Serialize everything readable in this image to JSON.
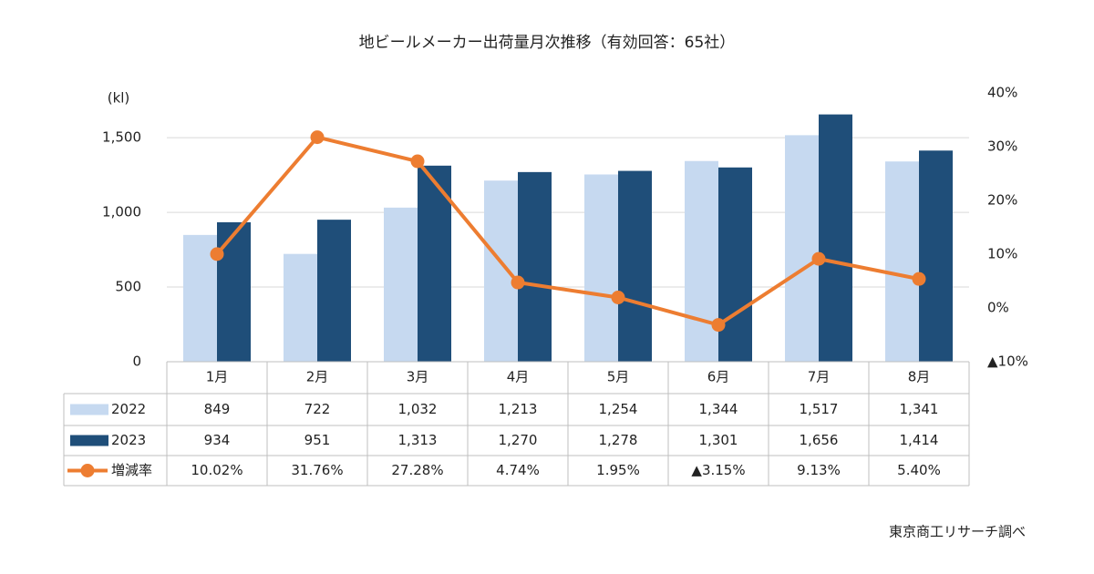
{
  "chart_data": {
    "type": "bar",
    "title": "地ビールメーカー出荷量月次推移（有効回答：65社）",
    "y_label": "(kl)",
    "source": "東京商工リサーチ調べ",
    "categories": [
      "1月",
      "2月",
      "3月",
      "4月",
      "5月",
      "6月",
      "7月",
      "8月"
    ],
    "ylim": [
      0,
      1800
    ],
    "yticks": [
      0,
      500,
      {
        "value": 1000,
        "label": "1,000"
      },
      {
        "value": 1500,
        "label": "1,500"
      }
    ],
    "y2lim": [
      -10,
      40
    ],
    "y2ticks": [
      {
        "value": -10,
        "label": "▲10%"
      },
      {
        "value": 0,
        "label": "0%"
      },
      {
        "value": 10,
        "label": "10%"
      },
      {
        "value": 20,
        "label": "20%"
      },
      {
        "value": 30,
        "label": "30%"
      },
      {
        "value": 40,
        "label": "40%"
      }
    ],
    "grid": true,
    "series": [
      {
        "name": "2022",
        "color": "#c6d9f0",
        "values": [
          849,
          722,
          1032,
          1213,
          1254,
          1344,
          1517,
          1341
        ],
        "value_labels": [
          "849",
          "722",
          "1,032",
          "1,213",
          "1,254",
          "1,344",
          "1,517",
          "1,341"
        ]
      },
      {
        "name": "2023",
        "color": "#1f4e79",
        "values": [
          934,
          951,
          1313,
          1270,
          1278,
          1301,
          1656,
          1414
        ],
        "value_labels": [
          "934",
          "951",
          "1,313",
          "1,270",
          "1,278",
          "1,301",
          "1,656",
          "1,414"
        ]
      },
      {
        "name": "増減率",
        "type": "line",
        "axis": "y2",
        "color": "#ed7d31",
        "values": [
          10.02,
          31.76,
          27.28,
          4.74,
          1.95,
          -3.15,
          9.13,
          5.4
        ],
        "value_labels": [
          "10.02%",
          "31.76%",
          "27.28%",
          "4.74%",
          "1.95%",
          "▲3.15%",
          "9.13%",
          "5.40%"
        ]
      }
    ]
  }
}
